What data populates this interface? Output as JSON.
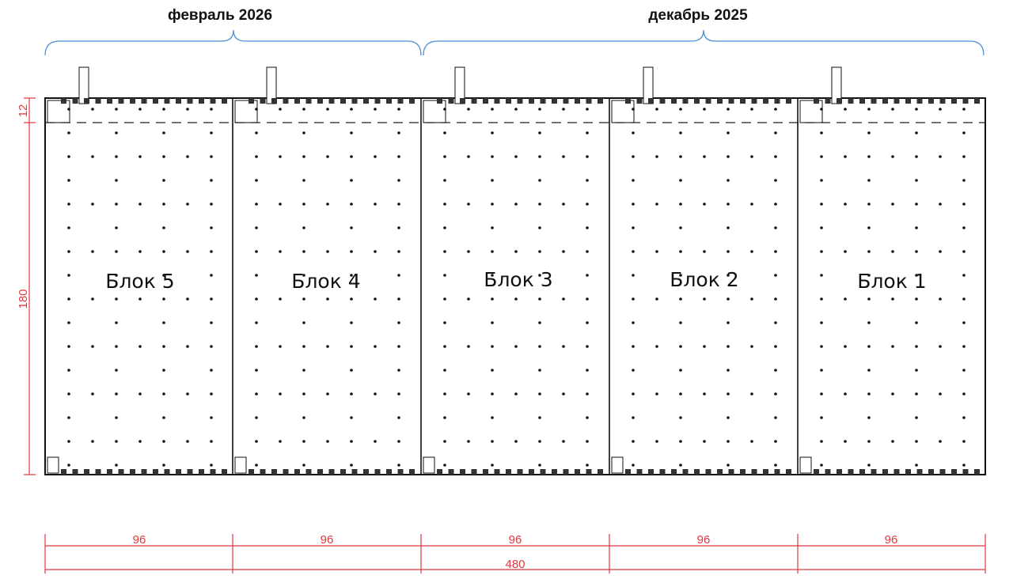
{
  "phases": [
    {
      "label": "февраль 2026"
    },
    {
      "label": "декабрь 2025"
    }
  ],
  "blocks": [
    {
      "label": "Блок 5"
    },
    {
      "label": "Блок 4"
    },
    {
      "label": "Блок 3"
    },
    {
      "label": "Блок 2"
    },
    {
      "label": "Блок 1"
    }
  ],
  "dimensions": {
    "vertical_top": "12",
    "vertical_main": "180",
    "block_widths": [
      "96",
      "96",
      "96",
      "96",
      "96"
    ],
    "total_width": "480"
  },
  "colors": {
    "dimension": "#e0393e",
    "bracket": "#4a90d9",
    "walls": "#111111"
  }
}
